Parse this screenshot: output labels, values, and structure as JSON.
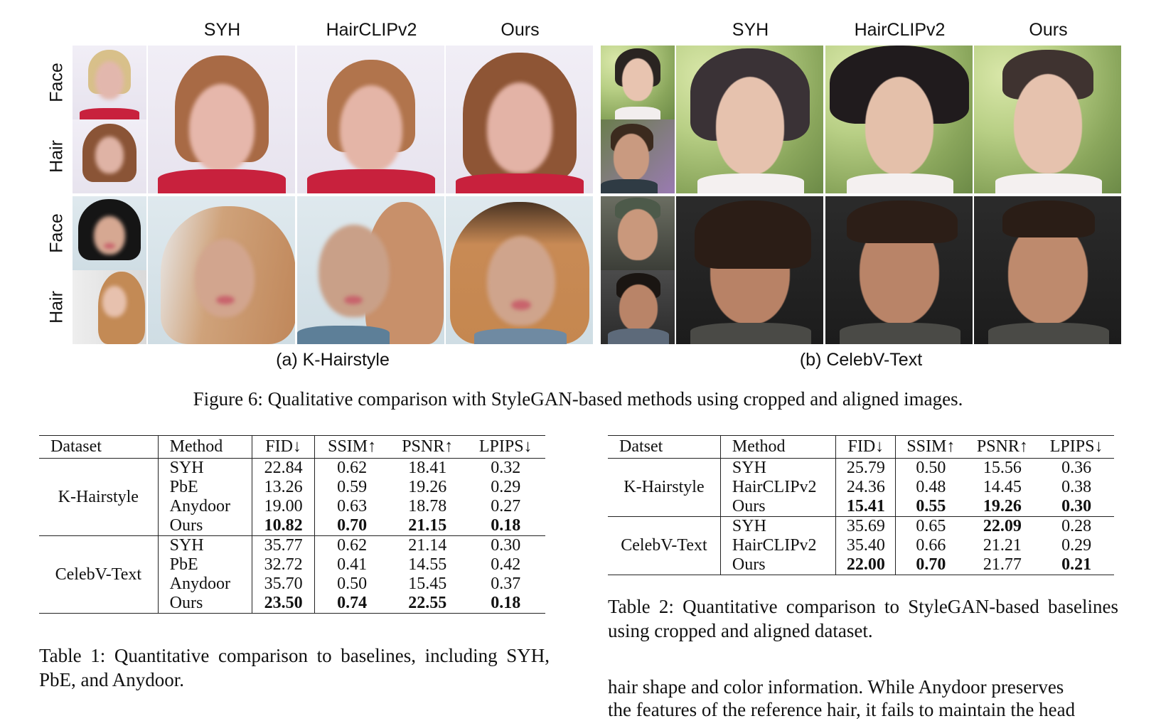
{
  "figure": {
    "left": {
      "subcaption": "(a) K-Hairstyle",
      "columns": [
        "SYH",
        "HairCLIPv2",
        "Ours"
      ],
      "row_labels": [
        "Face",
        "Hair",
        "Face",
        "Hair"
      ]
    },
    "right": {
      "subcaption": "(b) CelebV-Text",
      "columns": [
        "SYH",
        "HairCLIPv2",
        "Ours"
      ]
    },
    "caption": "Figure 6: Qualitative comparison with StyleGAN-based methods using cropped and aligned images."
  },
  "table1": {
    "headers": [
      "Dataset",
      "Method",
      "FID↓",
      "SSIM↑",
      "PSNR↑",
      "LPIPS↓"
    ],
    "groups": [
      {
        "dataset": "K-Hairstyle",
        "rows": [
          {
            "method": "SYH",
            "fid": "22.84",
            "ssim": "0.62",
            "psnr": "18.41",
            "lpips": "0.32"
          },
          {
            "method": "PbE",
            "fid": "13.26",
            "ssim": "0.59",
            "psnr": "19.26",
            "lpips": "0.29"
          },
          {
            "method": "Anydoor",
            "fid": "19.00",
            "ssim": "0.63",
            "psnr": "18.78",
            "lpips": "0.27"
          },
          {
            "method": "Ours",
            "fid": "10.82",
            "ssim": "0.70",
            "psnr": "21.15",
            "lpips": "0.18"
          }
        ]
      },
      {
        "dataset": "CelebV-Text",
        "rows": [
          {
            "method": "SYH",
            "fid": "35.77",
            "ssim": "0.62",
            "psnr": "21.14",
            "lpips": "0.30"
          },
          {
            "method": "PbE",
            "fid": "32.72",
            "ssim": "0.41",
            "psnr": "14.55",
            "lpips": "0.42"
          },
          {
            "method": "Anydoor",
            "fid": "35.70",
            "ssim": "0.50",
            "psnr": "15.45",
            "lpips": "0.37"
          },
          {
            "method": "Ours",
            "fid": "23.50",
            "ssim": "0.74",
            "psnr": "22.55",
            "lpips": "0.18"
          }
        ]
      }
    ],
    "caption": "Table 1: Quantitative comparison to baselines, including SYH, PbE, and Anydoor."
  },
  "table2": {
    "headers": [
      "Datset",
      "Method",
      "FID↓",
      "SSIM↑",
      "PSNR↑",
      "LPIPS↓"
    ],
    "groups": [
      {
        "dataset": "K-Hairstyle",
        "rows": [
          {
            "method": "SYH",
            "fid": "25.79",
            "ssim": "0.50",
            "psnr": "15.56",
            "lpips": "0.36"
          },
          {
            "method": "HairCLIPv2",
            "fid": "24.36",
            "ssim": "0.48",
            "psnr": "14.45",
            "lpips": "0.38"
          },
          {
            "method": "Ours",
            "fid": "15.41",
            "ssim": "0.55",
            "psnr": "19.26",
            "lpips": "0.30"
          }
        ]
      },
      {
        "dataset": "CelebV-Text",
        "rows": [
          {
            "method": "SYH",
            "fid": "35.69",
            "ssim": "0.65",
            "psnr": "22.09",
            "lpips": "0.28"
          },
          {
            "method": "HairCLIPv2",
            "fid": "35.40",
            "ssim": "0.66",
            "psnr": "21.21",
            "lpips": "0.29"
          },
          {
            "method": "Ours",
            "fid": "22.00",
            "ssim": "0.70",
            "psnr": "21.77",
            "lpips": "0.21"
          }
        ]
      }
    ],
    "caption": "Table 2: Quantitative comparison to StyleGAN-based baselines using cropped and aligned dataset."
  },
  "body": {
    "line1": "hair shape and color information. While Anydoor preserves",
    "line2": "the features of the reference hair, it fails to maintain the head"
  }
}
